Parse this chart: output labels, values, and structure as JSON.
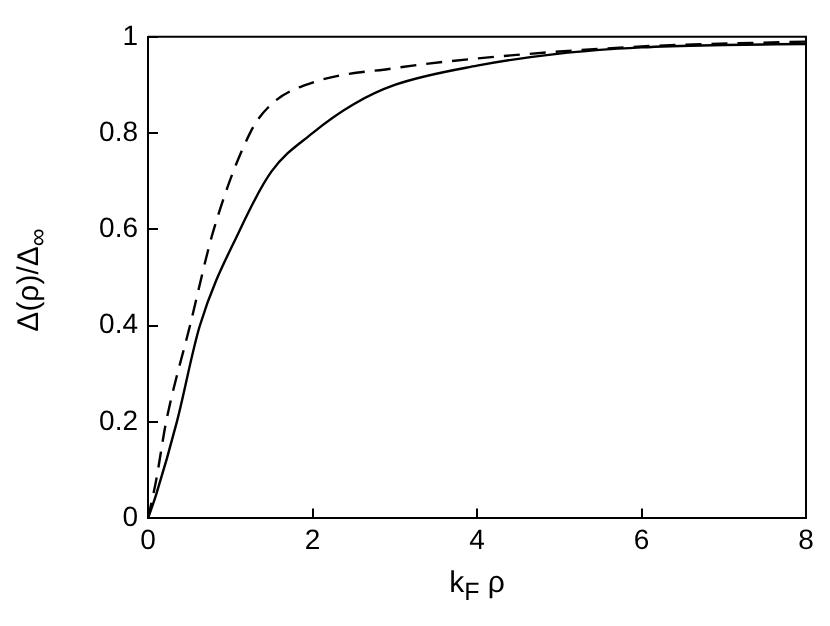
{
  "chart_data": {
    "type": "line",
    "xlabel": "k$_{F}$ ρ",
    "ylabel": "Δ(ρ)/Δ$_{∞}$",
    "xlim": [
      0,
      8
    ],
    "ylim": [
      0,
      1
    ],
    "xticks": [
      0,
      2,
      4,
      6,
      8
    ],
    "yticks": [
      0,
      0.2,
      0.4,
      0.6,
      0.8,
      1
    ],
    "grid": false,
    "legend": false,
    "marker": "none",
    "series": [
      {
        "color": "#000000",
        "line_style": "solid",
        "x": [
          0,
          0.1,
          0.35,
          0.63,
          1.12,
          1.5,
          2,
          2.5,
          3,
          4,
          5,
          6,
          7,
          8
        ],
        "values": [
          0,
          0.05,
          0.2,
          0.4,
          0.6,
          0.72,
          0.8,
          0.86,
          0.9,
          0.94,
          0.965,
          0.978,
          0.983,
          0.985
        ]
      },
      {
        "color": "#000000",
        "line_style": "dashed",
        "x": [
          0,
          0.1,
          0.22,
          0.51,
          0.8,
          1.24,
          1.5,
          2,
          3,
          4,
          6,
          8
        ],
        "values": [
          0,
          0.08,
          0.2,
          0.4,
          0.6,
          0.8,
          0.86,
          0.905,
          0.935,
          0.955,
          0.98,
          0.99
        ]
      }
    ]
  }
}
